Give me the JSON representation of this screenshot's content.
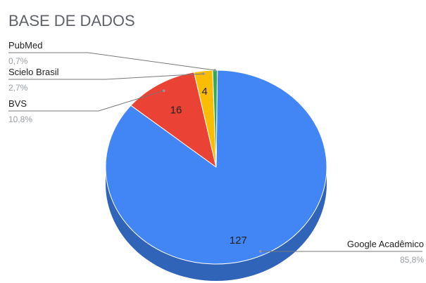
{
  "chart_data": {
    "type": "pie",
    "title": "BASE DE DADOS",
    "legend": "callout-labels",
    "slices": [
      {
        "name": "Google Acadêmico",
        "value": 127,
        "percent_label": "85,8%",
        "value_label": "127",
        "color": "#4285f4",
        "side_color": "#2f64b8"
      },
      {
        "name": "BVS",
        "value": 16,
        "percent_label": "10,8%",
        "value_label": "16",
        "color": "#ea4335",
        "side_color": "#b3261e"
      },
      {
        "name": "Scielo Brasil",
        "value": 4,
        "percent_label": "2,7%",
        "value_label": "4",
        "color": "#fbbc04",
        "side_color": "#c99400"
      },
      {
        "name": "PubMed",
        "value": 1,
        "percent_label": "0,7%",
        "value_label": "",
        "color": "#34a853",
        "side_color": "#23803d"
      }
    ]
  }
}
